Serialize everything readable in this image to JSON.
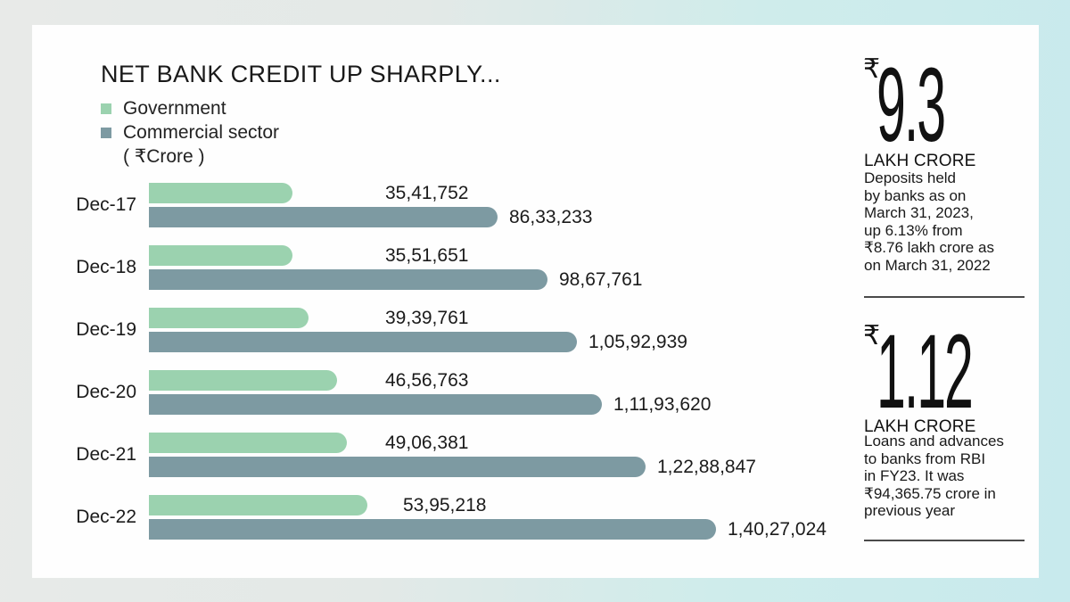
{
  "page": {
    "background_gradient": [
      "#e8eae8",
      "#c8eaed"
    ],
    "card_background": "#fefefe"
  },
  "chart": {
    "title": "NET BANK CREDIT UP SHARPLY...",
    "legend": [
      {
        "label": "Government",
        "color": "#9bd2af"
      },
      {
        "label": "Commercial sector",
        "color": "#7d9aa2"
      }
    ],
    "unit_label": "( ₹Crore )"
  },
  "chart_data": {
    "type": "bar",
    "orientation": "horizontal",
    "title": "NET BANK CREDIT UP SHARPLY...",
    "unit": "₹Crore",
    "categories": [
      "Dec-17",
      "Dec-18",
      "Dec-19",
      "Dec-20",
      "Dec-21",
      "Dec-22"
    ],
    "series": [
      {
        "name": "Government",
        "color": "#9bd2af",
        "values": [
          3541752,
          3551651,
          3939761,
          4656763,
          4906381,
          5395218
        ],
        "labels": [
          "35,41,752",
          "35,51,651",
          "39,39,761",
          "46,56,763",
          "49,06,381",
          "53,95,218"
        ]
      },
      {
        "name": "Commercial sector",
        "color": "#7d9aa2",
        "values": [
          8633233,
          9867761,
          10592939,
          11193620,
          12288847,
          14027024
        ],
        "labels": [
          "86,33,233",
          "98,67,761",
          "1,05,92,939",
          "1,11,93,620",
          "1,22,88,847",
          "1,40,27,024"
        ]
      }
    ],
    "max_value": 14027024,
    "value_labels_shown": true,
    "axes_shown": false,
    "grid": false,
    "legend_position": "top-left"
  },
  "sidebar": {
    "stats": [
      {
        "currency": "₹",
        "value": "9.3",
        "unit": "LAKH CRORE",
        "description": "Deposits held\nby banks as on\nMarch 31, 2023,\nup 6.13% from\n₹8.76 lakh crore as\non March 31, 2022"
      },
      {
        "currency": "₹",
        "value": "1.12",
        "unit": "LAKH CRORE",
        "description": "Loans and advances\nto banks from RBI\nin FY23. It was\n₹94,365.75 crore in\nprevious year"
      }
    ]
  }
}
